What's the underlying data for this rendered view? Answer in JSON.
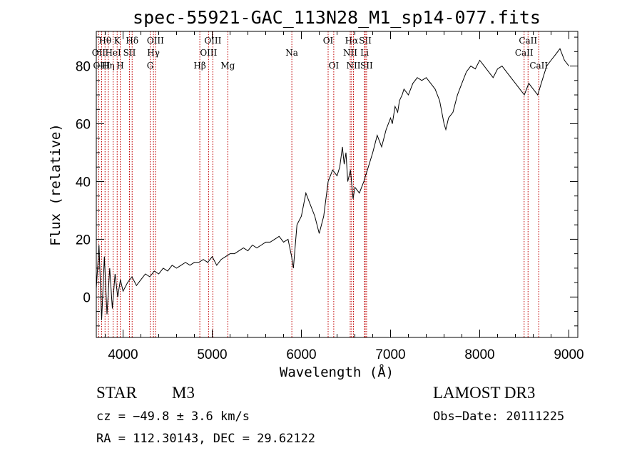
{
  "chart_data": {
    "type": "line",
    "title": "spec-55921-GAC_113N28_M1_sp14-077.fits",
    "xlabel": "Wavelength (Å)",
    "ylabel": "Flux (relative)",
    "xlim": [
      3700,
      9100
    ],
    "ylim": [
      -14,
      92
    ],
    "x_ticks": [
      4000,
      5000,
      6000,
      7000,
      8000,
      9000
    ],
    "y_ticks": [
      0,
      20,
      40,
      60,
      80
    ],
    "x_tick_labels": [
      "4000",
      "5000",
      "6000",
      "7000",
      "8000",
      "9000"
    ],
    "y_tick_labels": [
      "0",
      "20",
      "40",
      "60",
      "80"
    ],
    "series": [
      {
        "name": "spectrum",
        "color": "#000000",
        "x": [
          3700,
          3730,
          3760,
          3790,
          3820,
          3850,
          3880,
          3910,
          3940,
          3970,
          4000,
          4050,
          4100,
          4150,
          4200,
          4250,
          4300,
          4350,
          4400,
          4450,
          4500,
          4550,
          4600,
          4650,
          4700,
          4750,
          4800,
          4850,
          4900,
          4950,
          5000,
          5050,
          5100,
          5150,
          5200,
          5250,
          5300,
          5350,
          5400,
          5450,
          5500,
          5550,
          5600,
          5650,
          5700,
          5750,
          5800,
          5850,
          5890,
          5910,
          5950,
          6000,
          6050,
          6100,
          6150,
          6200,
          6250,
          6300,
          6350,
          6400,
          6430,
          6460,
          6480,
          6500,
          6520,
          6550,
          6580,
          6600,
          6650,
          6700,
          6750,
          6800,
          6850,
          6900,
          6950,
          7000,
          7020,
          7050,
          7080,
          7100,
          7130,
          7150,
          7200,
          7250,
          7300,
          7350,
          7400,
          7450,
          7500,
          7550,
          7600,
          7620,
          7650,
          7700,
          7750,
          7800,
          7850,
          7900,
          7950,
          8000,
          8050,
          8100,
          8150,
          8200,
          8250,
          8300,
          8350,
          8400,
          8450,
          8500,
          8550,
          8600,
          8650,
          8700,
          8750,
          8800,
          8850,
          8900,
          8950,
          9000
        ],
        "y": [
          3,
          18,
          -8,
          14,
          -6,
          10,
          -4,
          8,
          0,
          6,
          2,
          5,
          7,
          4,
          6,
          8,
          7,
          9,
          8,
          10,
          9,
          11,
          10,
          11,
          12,
          11,
          12,
          12,
          13,
          12,
          14,
          11,
          13,
          14,
          15,
          15,
          16,
          17,
          16,
          18,
          17,
          18,
          19,
          19,
          20,
          21,
          19,
          20,
          14,
          10,
          25,
          28,
          36,
          32,
          28,
          22,
          28,
          40,
          44,
          42,
          45,
          52,
          46,
          50,
          40,
          44,
          34,
          38,
          36,
          40,
          45,
          50,
          56,
          52,
          58,
          62,
          60,
          66,
          64,
          68,
          70,
          72,
          70,
          74,
          76,
          75,
          76,
          74,
          72,
          68,
          60,
          58,
          62,
          64,
          70,
          74,
          78,
          80,
          79,
          82,
          80,
          78,
          76,
          79,
          80,
          78,
          76,
          74,
          72,
          70,
          74,
          72,
          70,
          75,
          80,
          82,
          84,
          86,
          82,
          80
        ]
      }
    ],
    "line_marks": [
      {
        "label": "Hθ",
        "wavelength": 3798,
        "row": 1
      },
      {
        "label": "OII",
        "wavelength": 3727,
        "row": 2
      },
      {
        "label": "Hη",
        "wavelength": 3835,
        "row": 3
      },
      {
        "label": "OIII",
        "wavelength": 3760,
        "row": 3
      },
      {
        "label": "HeI",
        "wavelength": 3889,
        "row": 2
      },
      {
        "label": "K",
        "wavelength": 3934,
        "row": 1
      },
      {
        "label": "SII",
        "wavelength": 4072,
        "row": 2
      },
      {
        "label": "H",
        "wavelength": 3968,
        "row": 3
      },
      {
        "label": "Hδ",
        "wavelength": 4102,
        "row": 1
      },
      {
        "label": "OIII",
        "wavelength": 4363,
        "row": 1
      },
      {
        "label": "Hγ",
        "wavelength": 4341,
        "row": 2
      },
      {
        "label": "G",
        "wavelength": 4304,
        "row": 3
      },
      {
        "label": "OIII",
        "wavelength": 5007,
        "row": 1
      },
      {
        "label": "OIII",
        "wavelength": 4959,
        "row": 2
      },
      {
        "label": "Hβ",
        "wavelength": 4861,
        "row": 3
      },
      {
        "label": "Mg",
        "wavelength": 5175,
        "row": 3
      },
      {
        "label": "Na",
        "wavelength": 5893,
        "row": 2
      },
      {
        "label": "OI",
        "wavelength": 6300,
        "row": 1
      },
      {
        "label": "OI",
        "wavelength": 6363,
        "row": 3
      },
      {
        "label": "Hα",
        "wavelength": 6563,
        "row": 1
      },
      {
        "label": "SII",
        "wavelength": 6716,
        "row": 1
      },
      {
        "label": "NII",
        "wavelength": 6548,
        "row": 2
      },
      {
        "label": "Li",
        "wavelength": 6708,
        "row": 2
      },
      {
        "label": "NII",
        "wavelength": 6584,
        "row": 3
      },
      {
        "label": "SII",
        "wavelength": 6731,
        "row": 3
      },
      {
        "label": "CaII",
        "wavelength": 8542,
        "row": 1
      },
      {
        "label": "CaII",
        "wavelength": 8498,
        "row": 2
      },
      {
        "label": "CaII",
        "wavelength": 8662,
        "row": 3
      }
    ],
    "colors": {
      "spectrum": "#000000",
      "line_marks": "#c00000",
      "axes": "#000000"
    }
  },
  "info": {
    "object_class": "STAR",
    "subclass": "M3",
    "survey": "LAMOST DR3",
    "redshift_line": "cz = −49.8 ± 3.6 km/s",
    "obs_date_line": "Obs−Date: 20111225",
    "coords_line": "RA = 112.30143, DEC =  29.62122"
  }
}
